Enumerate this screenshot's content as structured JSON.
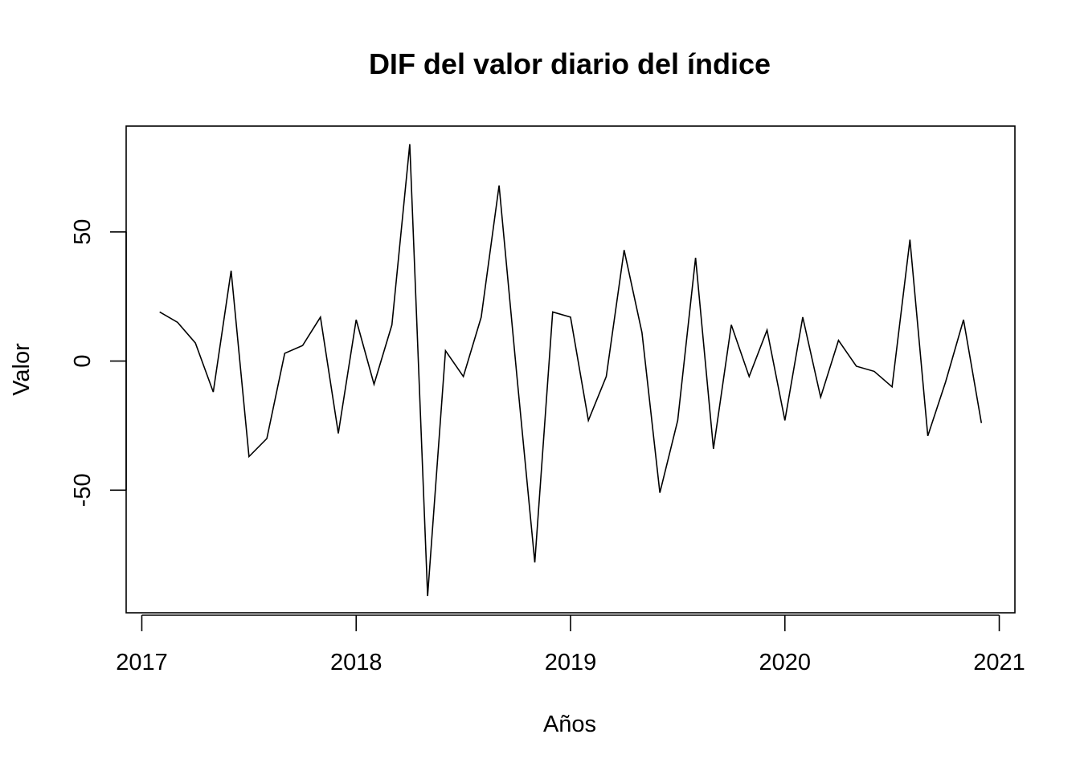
{
  "chart_data": {
    "type": "line",
    "title": "DIF del valor diario del índice",
    "xlabel": "Años",
    "ylabel": "Valor",
    "xlim": [
      2016.927,
      2021.073
    ],
    "ylim": [
      -97.5,
      91
    ],
    "x_ticks": [
      2017,
      2018,
      2019,
      2020,
      2021
    ],
    "x_tick_labels": [
      "2017",
      "2018",
      "2019",
      "2020",
      "2021"
    ],
    "y_ticks": [
      -50,
      0,
      50
    ],
    "y_tick_labels": [
      "-50",
      "0",
      "50"
    ],
    "grid": false,
    "legend": "none",
    "line_color": "#000000",
    "series": [
      {
        "x": [
          2017.0833,
          2017.1667,
          2017.25,
          2017.3333,
          2017.4167,
          2017.5,
          2017.5833,
          2017.6667,
          2017.75,
          2017.8333,
          2017.9167,
          2018.0,
          2018.0833,
          2018.1667,
          2018.25,
          2018.3333,
          2018.4167,
          2018.5,
          2018.5833,
          2018.6667,
          2018.75,
          2018.8333,
          2018.9167,
          2019.0,
          2019.0833,
          2019.1667,
          2019.25,
          2019.3333,
          2019.4167,
          2019.5,
          2019.5833,
          2019.6667,
          2019.75,
          2019.8333,
          2019.9167,
          2020.0,
          2020.0833,
          2020.1667,
          2020.25,
          2020.3333,
          2020.4167,
          2020.5,
          2020.5833,
          2020.6667,
          2020.75,
          2020.8333,
          2020.9167
        ],
        "values": [
          19,
          15,
          7,
          -12,
          35,
          -37,
          -30,
          3,
          6,
          17,
          -28,
          16,
          -9,
          14,
          84,
          -91,
          4,
          -6,
          17,
          68,
          -6,
          -78,
          19,
          17,
          -23,
          -6,
          43,
          11,
          -51,
          -23,
          40,
          -34,
          14,
          -6,
          12,
          -23,
          17,
          -14,
          8,
          -2,
          -4,
          -10,
          47,
          -29,
          -8,
          16,
          -24
        ]
      }
    ]
  }
}
